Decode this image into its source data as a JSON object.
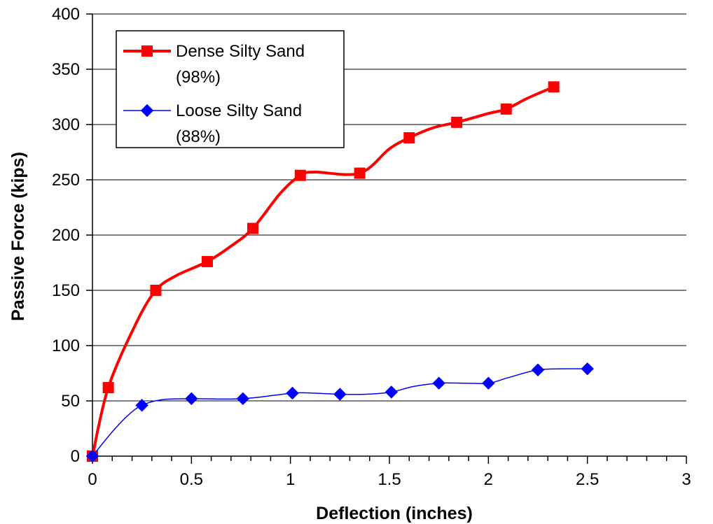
{
  "chart_data": {
    "type": "line",
    "title": "",
    "xlabel": "Deflection (inches)",
    "ylabel": "Passive Force (kips)",
    "xlim": [
      0,
      3
    ],
    "ylim": [
      0,
      400
    ],
    "x_ticks": [
      "0",
      "0.5",
      "1",
      "1.5",
      "2",
      "2.5",
      "3"
    ],
    "y_ticks": [
      "0",
      "50",
      "100",
      "150",
      "200",
      "250",
      "300",
      "350",
      "400"
    ],
    "grid": "horizontal",
    "legend_position": "top-left",
    "series": [
      {
        "name_line1": "Dense Silty Sand",
        "name_line2": "(98%)",
        "color": "#ff0000",
        "marker": "square",
        "points": [
          [
            0,
            0
          ],
          [
            0.08,
            62
          ],
          [
            0.22,
            120
          ],
          [
            0.32,
            150
          ],
          [
            0.42,
            163
          ],
          [
            0.58,
            176
          ],
          [
            0.7,
            190
          ],
          [
            0.81,
            206
          ],
          [
            0.95,
            238
          ],
          [
            1.05,
            254
          ],
          [
            1.12,
            257
          ],
          [
            1.35,
            256
          ],
          [
            1.5,
            278
          ],
          [
            1.6,
            288
          ],
          [
            1.72,
            297
          ],
          [
            1.84,
            302
          ],
          [
            2.0,
            310
          ],
          [
            2.09,
            314
          ],
          [
            2.2,
            324
          ],
          [
            2.33,
            334
          ]
        ],
        "marker_points": [
          [
            0,
            0
          ],
          [
            0.08,
            62
          ],
          [
            0.32,
            150
          ],
          [
            0.58,
            176
          ],
          [
            0.81,
            206
          ],
          [
            1.05,
            254
          ],
          [
            1.35,
            256
          ],
          [
            1.6,
            288
          ],
          [
            1.84,
            302
          ],
          [
            2.09,
            314
          ],
          [
            2.33,
            334
          ]
        ]
      },
      {
        "name_line1": "Loose Silty Sand",
        "name_line2": "(88%)",
        "color": "#0000ff",
        "marker": "diamond",
        "points": [
          [
            0,
            0
          ],
          [
            0.1,
            22
          ],
          [
            0.18,
            37
          ],
          [
            0.25,
            46
          ],
          [
            0.35,
            51
          ],
          [
            0.5,
            52
          ],
          [
            0.76,
            52
          ],
          [
            1.01,
            57
          ],
          [
            1.12,
            57
          ],
          [
            1.25,
            56
          ],
          [
            1.38,
            56
          ],
          [
            1.51,
            58
          ],
          [
            1.62,
            63
          ],
          [
            1.75,
            66
          ],
          [
            1.88,
            66
          ],
          [
            2.0,
            66
          ],
          [
            2.1,
            71
          ],
          [
            2.25,
            78
          ],
          [
            2.4,
            79
          ],
          [
            2.5,
            79
          ]
        ],
        "marker_points": [
          [
            0,
            0
          ],
          [
            0.25,
            46
          ],
          [
            0.5,
            52
          ],
          [
            0.76,
            52
          ],
          [
            1.01,
            57
          ],
          [
            1.25,
            56
          ],
          [
            1.51,
            58
          ],
          [
            1.75,
            66
          ],
          [
            2.0,
            66
          ],
          [
            2.25,
            78
          ],
          [
            2.5,
            79
          ]
        ]
      }
    ]
  }
}
